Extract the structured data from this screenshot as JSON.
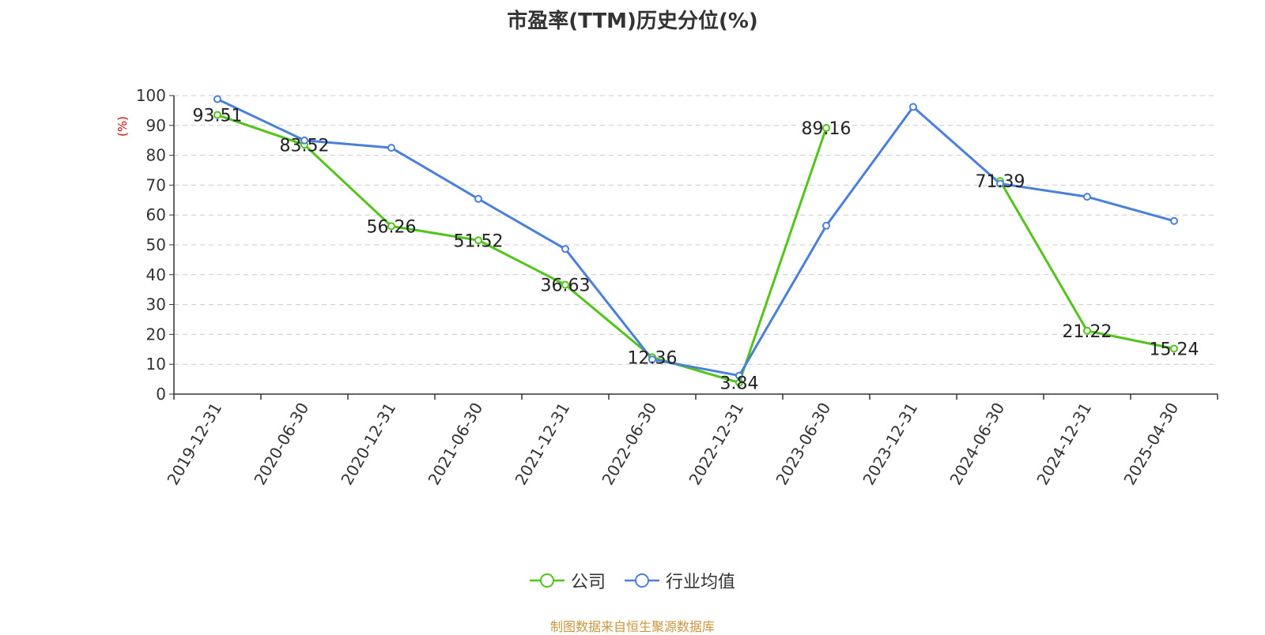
{
  "chart_data": {
    "type": "line",
    "title": "市盈率(TTM)历史分位(%)",
    "ylabel": "(%)",
    "xlabel": "",
    "ylim": [
      0,
      100
    ],
    "yticks": [
      "0",
      "10",
      "20",
      "30",
      "40",
      "50",
      "60",
      "70",
      "80",
      "90",
      "100"
    ],
    "grid": true,
    "legend_position": "bottom",
    "categories": [
      "2019-12-31",
      "2020-06-30",
      "2020-12-31",
      "2021-06-30",
      "2021-12-31",
      "2022-06-30",
      "2022-12-31",
      "2023-06-30",
      "2023-12-31",
      "2024-06-30",
      "2024-12-31",
      "2025-04-30"
    ],
    "series": [
      {
        "name": "公司",
        "color": "#52c41a",
        "values": [
          93.51,
          83.52,
          56.26,
          51.52,
          36.63,
          12.36,
          3.84,
          89.16,
          null,
          71.39,
          21.22,
          15.24
        ],
        "labels": [
          "93.51",
          "83.52",
          "56.26",
          "51.52",
          "36.63",
          "12.36",
          "3.84",
          "89.16",
          "",
          "71.39",
          "21.22",
          "15.24"
        ]
      },
      {
        "name": "行业均值",
        "color": "#4a7fdb",
        "values": [
          98.8,
          85.0,
          82.5,
          65.4,
          48.6,
          11.6,
          6.2,
          56.4,
          96.2,
          70.5,
          66.1,
          58.0
        ]
      }
    ],
    "source_note": "制图数据来自恒生聚源数据库"
  }
}
